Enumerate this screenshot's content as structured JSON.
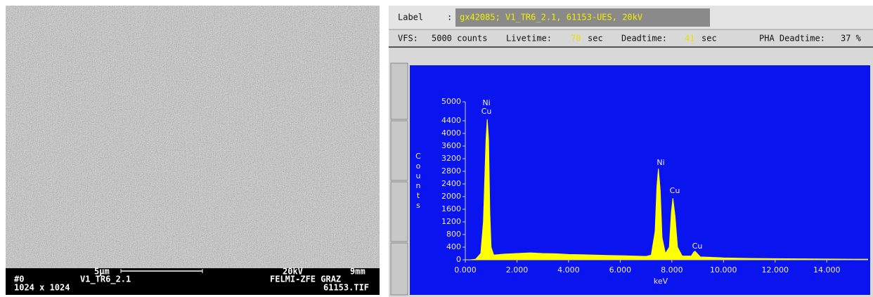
{
  "sem_image": {
    "frame": "#0",
    "label": "V1_TR6_2.1",
    "resolution": "1024 x 1024",
    "scale": "5μm",
    "voltage": "20kV",
    "distance": "9mm",
    "lab": "FELMI-ZFE GRAZ",
    "file": "61153.TIF"
  },
  "header": {
    "label_caption": "Label",
    "label_colon": ":",
    "label_value": "gx42085; V1_TR6_2.1, 61153-UES, 20kV",
    "vfs_caption": "VFS:",
    "vfs_value": "5000 counts",
    "livetime_caption": "Livetime:",
    "livetime_value": "70",
    "livetime_unit": "sec",
    "deadtime_caption": "Deadtime:",
    "deadtime_value": "41",
    "deadtime_unit": "sec",
    "pha_caption": "PHA Deadtime:",
    "pha_value": "37 %"
  },
  "chart_data": {
    "type": "area",
    "x_label": "keV",
    "y_label": "Counts",
    "x": [
      0.0,
      0.2,
      0.4,
      0.6,
      0.7,
      0.8,
      0.85,
      0.9,
      0.95,
      1.0,
      1.1,
      1.5,
      2.0,
      2.5,
      3.0,
      3.5,
      4.0,
      4.5,
      5.0,
      5.5,
      6.0,
      6.5,
      7.0,
      7.2,
      7.35,
      7.42,
      7.48,
      7.55,
      7.62,
      7.75,
      7.9,
      7.98,
      8.04,
      8.12,
      8.22,
      8.4,
      8.75,
      8.85,
      8.9,
      8.98,
      9.1,
      9.5,
      10.0,
      11.0,
      12.0,
      13.0,
      14.0,
      15.0,
      15.6
    ],
    "series": [
      {
        "color": "#ffff00",
        "values": [
          0,
          0,
          20,
          200,
          1200,
          3800,
          4450,
          3800,
          1500,
          400,
          150,
          180,
          200,
          220,
          200,
          190,
          170,
          160,
          150,
          140,
          130,
          120,
          110,
          150,
          900,
          2300,
          2890,
          2200,
          700,
          200,
          400,
          1500,
          1950,
          1400,
          400,
          120,
          120,
          250,
          270,
          200,
          90,
          80,
          60,
          45,
          35,
          30,
          25,
          20,
          20
        ]
      }
    ],
    "xlim": [
      0,
      15.6
    ],
    "ylim": [
      0,
      5000
    ],
    "xticks": [
      {
        "value": 0,
        "label": "0.000"
      },
      {
        "value": 2,
        "label": "2.000"
      },
      {
        "value": 4,
        "label": "4.000"
      },
      {
        "value": 6,
        "label": "6.000"
      },
      {
        "value": 8,
        "label": "8.000"
      },
      {
        "value": 10,
        "label": "10.000"
      },
      {
        "value": 12,
        "label": "12.000"
      },
      {
        "value": 14,
        "label": "14.000"
      }
    ],
    "yticks": [
      0,
      400,
      800,
      1200,
      1600,
      2000,
      2400,
      2800,
      3200,
      3600,
      4000,
      4400,
      5000
    ],
    "annotations": [
      "Ni",
      "Cu",
      "Ni",
      "Cu",
      "Cu"
    ]
  }
}
